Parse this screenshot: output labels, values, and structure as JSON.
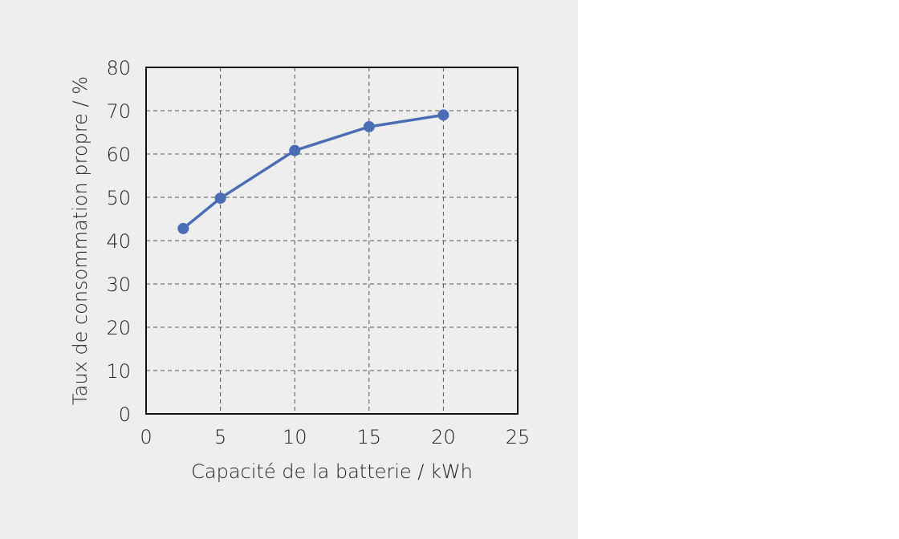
{
  "chart_data": {
    "type": "line",
    "title": "",
    "xlabel": "Capacité de la batterie / kWh",
    "ylabel": "Taux de consommation propre / %",
    "xlim": [
      0,
      25
    ],
    "ylim": [
      0,
      80
    ],
    "x_ticks": [
      0,
      5,
      10,
      15,
      20,
      25
    ],
    "y_ticks": [
      0,
      10,
      20,
      30,
      40,
      50,
      60,
      70,
      80
    ],
    "grid": true,
    "legend": "none",
    "series": [
      {
        "color": "#4a6db5",
        "points": [
          {
            "x": 2.5,
            "y": 42.8
          },
          {
            "x": 5,
            "y": 49.8
          },
          {
            "x": 10,
            "y": 60.8
          },
          {
            "x": 15,
            "y": 66.3
          },
          {
            "x": 20,
            "y": 69.0
          }
        ]
      }
    ]
  }
}
